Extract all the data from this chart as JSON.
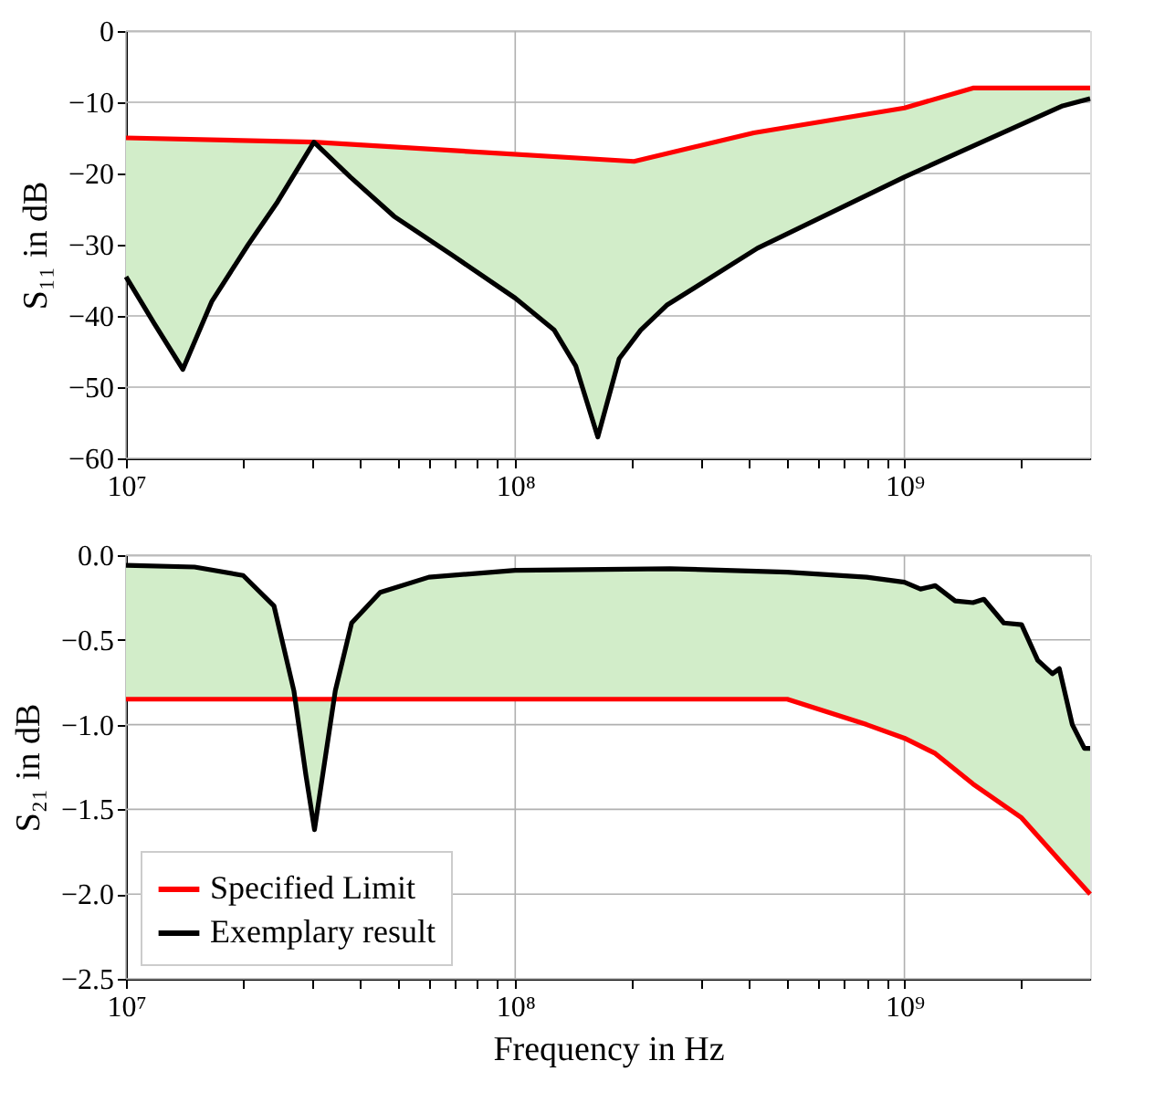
{
  "chart_data": [
    {
      "type": "line",
      "ylabel": "S₁₁ in dB",
      "log": "x",
      "grid": true,
      "legend": false,
      "line_style": "solid",
      "marker": "none",
      "xlim": [
        10000000,
        3000000000
      ],
      "ylim": [
        -60,
        0
      ],
      "xticks": [
        {
          "value": 10000000,
          "label": "10⁷"
        },
        {
          "value": 20000000,
          "label": null
        },
        {
          "value": 30000000,
          "label": null
        },
        {
          "value": 40000000,
          "label": null
        },
        {
          "value": 50000000,
          "label": null
        },
        {
          "value": 60000000,
          "label": null
        },
        {
          "value": 70000000,
          "label": null
        },
        {
          "value": 80000000,
          "label": null
        },
        {
          "value": 90000000,
          "label": null
        },
        {
          "value": 100000000,
          "label": "10⁸"
        },
        {
          "value": 200000000,
          "label": null
        },
        {
          "value": 300000000,
          "label": null
        },
        {
          "value": 400000000,
          "label": null
        },
        {
          "value": 500000000,
          "label": null
        },
        {
          "value": 600000000,
          "label": null
        },
        {
          "value": 700000000,
          "label": null
        },
        {
          "value": 800000000,
          "label": null
        },
        {
          "value": 900000000,
          "label": null
        },
        {
          "value": 1000000000,
          "label": "10⁹"
        },
        {
          "value": 2000000000,
          "label": null
        }
      ],
      "yticks": [
        {
          "value": 0,
          "label": "0"
        },
        {
          "value": -10,
          "label": "−10"
        },
        {
          "value": -20,
          "label": "−20"
        },
        {
          "value": -30,
          "label": "−30"
        },
        {
          "value": -40,
          "label": "−40"
        },
        {
          "value": -50,
          "label": "−50"
        },
        {
          "value": -60,
          "label": "−60"
        }
      ],
      "series": [
        {
          "color": "#ff0000",
          "x": [
            10000000,
            30400000,
            202000000,
            410000000,
            1000000000,
            1500000000,
            3000000000
          ],
          "values": [
            -15,
            -15.6,
            -18.3,
            -14.3,
            -10.8,
            -8,
            -8
          ]
        },
        {
          "color": "#000000",
          "x": [
            10000000,
            11800000,
            14000000,
            16600000,
            20600000,
            24500000,
            30400000,
            37700000,
            48800000,
            69000000,
            100000000,
            126000000,
            143000000,
            163000000,
            185000000,
            210000000,
            245000000,
            419000000,
            1000000000,
            1520000000,
            2550000000,
            3000000000
          ],
          "values": [
            -34.5,
            -41,
            -47.5,
            -38,
            -30,
            -24,
            -15.6,
            -20.5,
            -26,
            -31.5,
            -37.5,
            -42,
            -47,
            -57,
            -46,
            -42,
            -38.5,
            -30.5,
            -20.5,
            -16,
            -10.5,
            -9.5
          ],
          "lower": [
            -34.5,
            -41,
            -47.5,
            -38,
            -30,
            -24,
            -15.6,
            -20.5,
            -26,
            -31.5,
            -37.5,
            -42,
            -47,
            -57,
            -46,
            -42,
            -38.5,
            -30.5,
            -20.5,
            -16,
            -10.5,
            -9.5
          ],
          "upper": [
            -15,
            -15.1,
            -15.2,
            -15.3,
            -15.4,
            -15.5,
            -15.6,
            -15.8,
            -16.0,
            -16.5,
            -17.0,
            -17.4,
            -17.7,
            -17.9,
            -18.1,
            -18.0,
            -17.3,
            -14.3,
            -10.8,
            -8,
            -8,
            -8
          ]
        }
      ]
    },
    {
      "type": "line",
      "xlabel": "Frequency in Hz",
      "ylabel": "S₂₁ in dB",
      "log": "x",
      "grid": true,
      "legend": "bottom left",
      "line_style": "solid",
      "marker": "none",
      "xlim": [
        10000000,
        3000000000
      ],
      "ylim": [
        -2.5,
        0
      ],
      "xticks": [
        {
          "value": 10000000,
          "label": "10⁷"
        },
        {
          "value": 20000000,
          "label": null
        },
        {
          "value": 30000000,
          "label": null
        },
        {
          "value": 40000000,
          "label": null
        },
        {
          "value": 50000000,
          "label": null
        },
        {
          "value": 60000000,
          "label": null
        },
        {
          "value": 70000000,
          "label": null
        },
        {
          "value": 80000000,
          "label": null
        },
        {
          "value": 90000000,
          "label": null
        },
        {
          "value": 100000000,
          "label": "10⁸"
        },
        {
          "value": 200000000,
          "label": null
        },
        {
          "value": 300000000,
          "label": null
        },
        {
          "value": 400000000,
          "label": null
        },
        {
          "value": 500000000,
          "label": null
        },
        {
          "value": 600000000,
          "label": null
        },
        {
          "value": 700000000,
          "label": null
        },
        {
          "value": 800000000,
          "label": null
        },
        {
          "value": 900000000,
          "label": null
        },
        {
          "value": 1000000000,
          "label": "10⁹"
        },
        {
          "value": 2000000000,
          "label": null
        }
      ],
      "yticks": [
        {
          "value": 0,
          "label": "0.0"
        },
        {
          "value": -0.5,
          "label": "−0.5"
        },
        {
          "value": -1,
          "label": "−1.0"
        },
        {
          "value": -1.5,
          "label": "−1.5"
        },
        {
          "value": -2,
          "label": "−2.0"
        },
        {
          "value": -2.5,
          "label": "−2.5"
        }
      ],
      "series": [
        {
          "name": "Specified Limit",
          "color": "#ff0000",
          "x": [
            10000000,
            500000000,
            800000000,
            1000000000,
            1200000000,
            1500000000,
            2000000000,
            2500000000,
            3000000000
          ],
          "values": [
            -0.85,
            -0.85,
            -1.0,
            -1.08,
            -1.17,
            -1.35,
            -1.55,
            -1.8,
            -2.0
          ]
        },
        {
          "name": "Exemplary result",
          "color": "#000000",
          "x": [
            10000000,
            15000000,
            20000000,
            24000000,
            27000000,
            29000000,
            30500000,
            32000000,
            34500000,
            38000000,
            45000000,
            60000000,
            100000000,
            250000000,
            500000000,
            800000000,
            1000000000,
            1100000000,
            1200000000,
            1350000000,
            1500000000,
            1600000000,
            1800000000,
            2000000000,
            2200000000,
            2400000000,
            2500000000,
            2700000000,
            2900000000,
            3000000000
          ],
          "values": [
            -0.06,
            -0.07,
            -0.12,
            -0.3,
            -0.8,
            -1.3,
            -1.62,
            -1.3,
            -0.8,
            -0.4,
            -0.22,
            -0.13,
            -0.09,
            -0.08,
            -0.1,
            -0.13,
            -0.16,
            -0.2,
            -0.18,
            -0.27,
            -0.28,
            -0.26,
            -0.4,
            -0.41,
            -0.62,
            -0.7,
            -0.67,
            -1.0,
            -1.14,
            -1.14
          ],
          "upper": [
            -0.06,
            -0.07,
            -0.12,
            -0.3,
            -0.8,
            -1.3,
            -1.62,
            -1.3,
            -0.8,
            -0.4,
            -0.22,
            -0.13,
            -0.09,
            -0.08,
            -0.1,
            -0.13,
            -0.16,
            -0.2,
            -0.18,
            -0.27,
            -0.28,
            -0.26,
            -0.4,
            -0.41,
            -0.62,
            -0.7,
            -0.67,
            -1.0,
            -1.14,
            -1.14
          ],
          "lower": [
            -0.85,
            -0.85,
            -0.85,
            -0.85,
            -0.85,
            -0.85,
            -0.85,
            -0.85,
            -0.85,
            -0.85,
            -0.85,
            -0.85,
            -0.85,
            -0.85,
            -0.85,
            -1.0,
            -1.08,
            -1.12,
            -1.17,
            -1.25,
            -1.35,
            -1.4,
            -1.48,
            -1.55,
            -1.65,
            -1.75,
            -1.8,
            -1.88,
            -1.96,
            -2.0
          ]
        }
      ]
    }
  ]
}
